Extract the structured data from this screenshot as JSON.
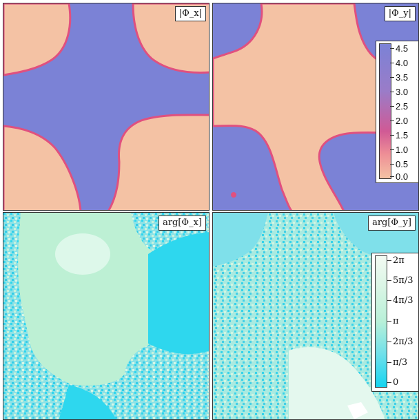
{
  "panels": {
    "abs_x": {
      "label": "|Φ_x|"
    },
    "abs_y": {
      "label": "|Φ_y|"
    },
    "arg_x": {
      "label": "arg[Φ_x]"
    },
    "arg_y": {
      "label": "arg[Φ_y]"
    }
  },
  "colorbar_magnitude": {
    "ticks": [
      "4.5",
      "4.0",
      "3.5",
      "3.0",
      "2.5",
      "2.0",
      "1.5",
      "1.0",
      "0.5",
      "0.0"
    ],
    "colors": {
      "high": "#7b82d6",
      "mid": "#e0507f",
      "low": "#f4c2a4"
    }
  },
  "colorbar_phase": {
    "ticks": [
      "2π",
      "5π/3",
      "4π/3",
      "π",
      "2π/3",
      "π/3",
      "0"
    ],
    "colors": {
      "high": "#f3fbf3",
      "mid": "#b8f0d8",
      "low": "#14d4f0"
    }
  }
}
